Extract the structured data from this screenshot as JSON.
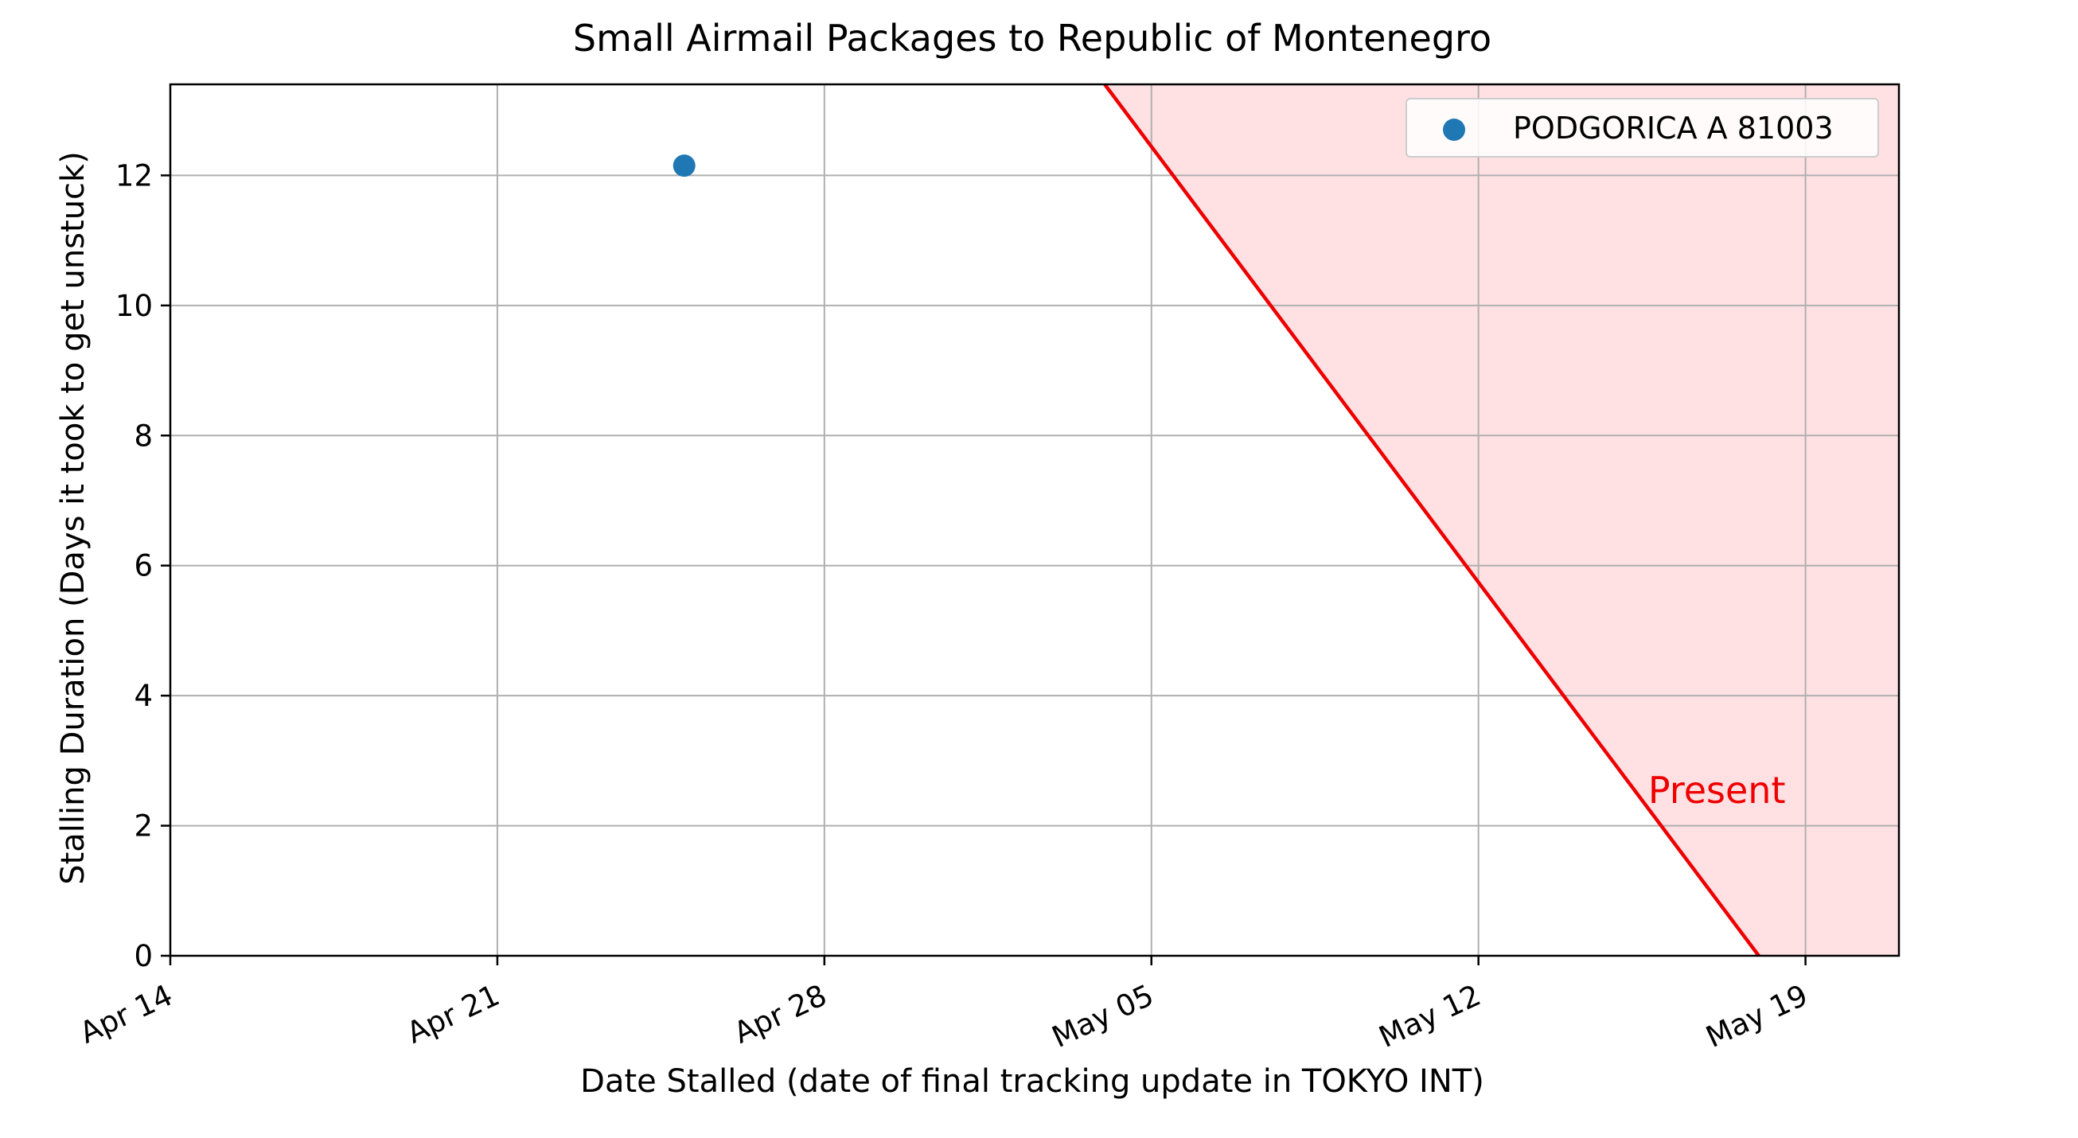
{
  "chart_data": {
    "type": "scatter",
    "title": "Small Airmail Packages to Republic of Montenegro",
    "xlabel": "Date Stalled (date of final tracking update in TOKYO INT)",
    "ylabel": "Stalling Duration (Days it took to get unstuck)",
    "x_axis_type": "date",
    "xlim": [
      "2024-04-14",
      "2024-05-21"
    ],
    "ylim": [
      0,
      13.4
    ],
    "x_ticks": [
      {
        "date": "2024-04-14",
        "label": "Apr 14"
      },
      {
        "date": "2024-04-21",
        "label": "Apr 21"
      },
      {
        "date": "2024-04-28",
        "label": "Apr 28"
      },
      {
        "date": "2024-05-05",
        "label": "May 05"
      },
      {
        "date": "2024-05-12",
        "label": "May 12"
      },
      {
        "date": "2024-05-19",
        "label": "May 19"
      }
    ],
    "y_ticks": [
      {
        "value": 0,
        "label": "0"
      },
      {
        "value": 2,
        "label": "2"
      },
      {
        "value": 4,
        "label": "4"
      },
      {
        "value": 6,
        "label": "6"
      },
      {
        "value": 8,
        "label": "8"
      },
      {
        "value": 10,
        "label": "10"
      },
      {
        "value": 12,
        "label": "12"
      }
    ],
    "grid": true,
    "legend_position": "top-right",
    "series": [
      {
        "name": "PODGORICA A 81003",
        "color": "#1f77b4",
        "points": [
          {
            "x": "2024-04-25",
            "y": 12.15
          }
        ]
      }
    ],
    "present_line": {
      "label": "Present",
      "color": "#ee0000",
      "shade_color": "#ffe0e3",
      "points": [
        {
          "x": "2024-05-04",
          "y": 13.4
        },
        {
          "x": "2024-05-18",
          "y": 0
        }
      ]
    }
  }
}
